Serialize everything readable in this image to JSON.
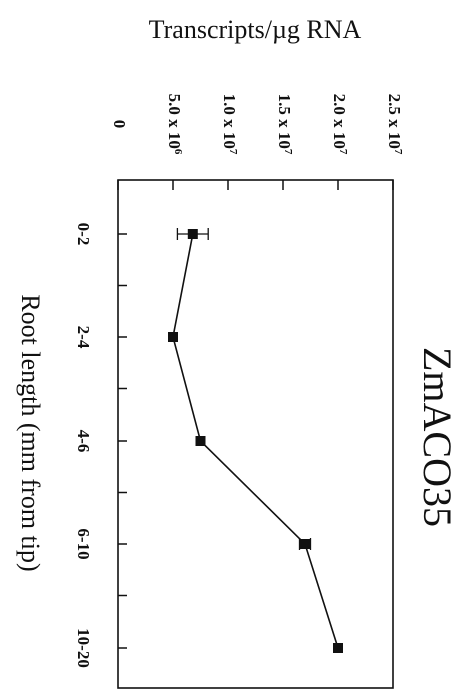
{
  "chart_data": {
    "type": "line",
    "title": "ZmACO35",
    "xlabel": "Root length (mm from tip)",
    "ylabel": "Transcripts/µg RNA",
    "categories": [
      "0-2",
      "2-4",
      "4-6",
      "6-10",
      "10-20"
    ],
    "ylim": [
      0,
      25000000
    ],
    "y_tick_values": [
      0,
      5000000,
      10000000,
      15000000,
      20000000,
      25000000
    ],
    "y_tick_labels": [
      {
        "base": "0",
        "exp": ""
      },
      {
        "base": "5.0 x 10",
        "exp": "6"
      },
      {
        "base": "1.0 x 10",
        "exp": "7"
      },
      {
        "base": "1.5 x 10",
        "exp": "7"
      },
      {
        "base": "2.0 x 10",
        "exp": "7"
      },
      {
        "base": "2.5 x 10",
        "exp": "7"
      }
    ],
    "series": [
      {
        "values": [
          6800000,
          5000000,
          7500000,
          17000000,
          20000000
        ],
        "error": [
          1400000,
          0,
          0,
          500000,
          0
        ]
      }
    ],
    "grid": false,
    "orientation": "rotated-90-clockwise"
  }
}
